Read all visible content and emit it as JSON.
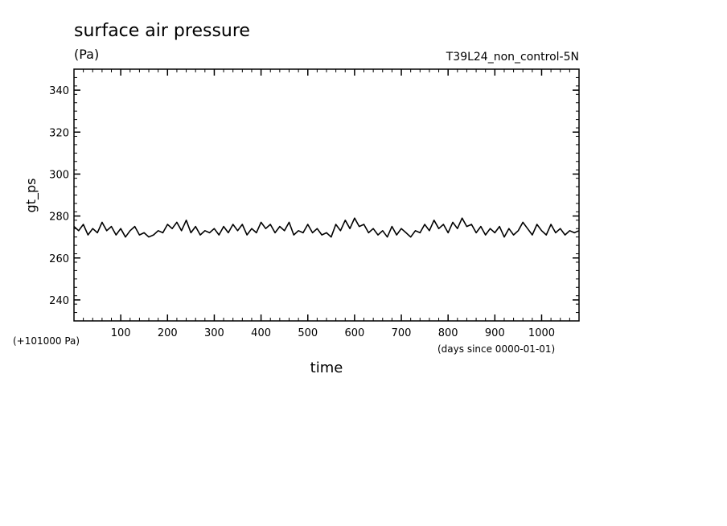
{
  "chart_data": {
    "type": "line",
    "title": "surface air pressure",
    "units": "(Pa)",
    "run_label": "T39L24_non_control-5N",
    "xlabel": "time",
    "x_units": "(days since 0000-01-01)",
    "ylabel": "gt_ps",
    "y_offset_label": "(+101000 Pa)",
    "xlim": [
      0,
      1080
    ],
    "ylim": [
      230,
      350
    ],
    "x_ticks": [
      100,
      200,
      300,
      400,
      500,
      600,
      700,
      800,
      900,
      1000
    ],
    "y_ticks": [
      240,
      260,
      280,
      300,
      320,
      340
    ],
    "grid": false,
    "color": "#000000",
    "series": [
      {
        "x": [
          0,
          10,
          20,
          30,
          40,
          50,
          60,
          70,
          80,
          90,
          100,
          110,
          120,
          130,
          140,
          150,
          160,
          170,
          180,
          190,
          200,
          210,
          220,
          230,
          240,
          250,
          260,
          270,
          280,
          290,
          300,
          310,
          320,
          330,
          340,
          350,
          360,
          370,
          380,
          390,
          400,
          410,
          420,
          430,
          440,
          450,
          460,
          470,
          480,
          490,
          500,
          510,
          520,
          530,
          540,
          550,
          560,
          570,
          580,
          590,
          600,
          610,
          620,
          630,
          640,
          650,
          660,
          670,
          680,
          690,
          700,
          710,
          720,
          730,
          740,
          750,
          760,
          770,
          780,
          790,
          800,
          810,
          820,
          830,
          840,
          850,
          860,
          870,
          880,
          890,
          900,
          910,
          920,
          930,
          940,
          950,
          960,
          970,
          980,
          990,
          1000,
          1010,
          1020,
          1030,
          1040,
          1050,
          1060,
          1070,
          1080
        ],
        "values": [
          275,
          273,
          276,
          271,
          274,
          272,
          277,
          273,
          275,
          271,
          274,
          270,
          273,
          275,
          271,
          272,
          270,
          271,
          273,
          272,
          276,
          274,
          277,
          273,
          278,
          272,
          275,
          271,
          273,
          272,
          274,
          271,
          275,
          272,
          276,
          273,
          276,
          271,
          274,
          272,
          277,
          274,
          276,
          272,
          275,
          273,
          277,
          271,
          273,
          272,
          276,
          272,
          274,
          271,
          272,
          270,
          276,
          273,
          278,
          274,
          279,
          275,
          276,
          272,
          274,
          271,
          273,
          270,
          275,
          271,
          274,
          272,
          270,
          273,
          272,
          276,
          273,
          278,
          274,
          276,
          272,
          277,
          274,
          279,
          275,
          276,
          272,
          275,
          271,
          274,
          272,
          275,
          270,
          274,
          271,
          273,
          277,
          274,
          271,
          276,
          273,
          271,
          276,
          272,
          274,
          271,
          273,
          272,
          273
        ]
      }
    ]
  }
}
